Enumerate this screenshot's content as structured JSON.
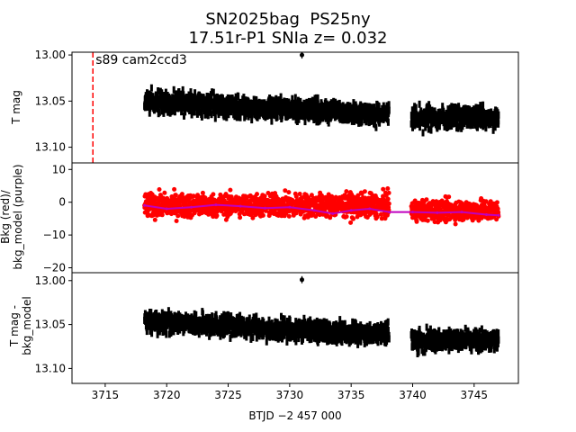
{
  "figure": {
    "title_line1": "SN2025bag  PS25ny",
    "title_line2": "17.51r-P1 SNIa z= 0.032",
    "xlabel": "BTJD −2 457 000"
  },
  "colors": {
    "flux": "#000000",
    "bkg": "#ff0000",
    "bkg_model": "#bf00bf",
    "marker_line": "#ff0000"
  },
  "chart_data": [
    {
      "type": "scatter",
      "panel": "top",
      "ylabel": "T mag",
      "annotation": "s89 cam2ccd3",
      "marker_line_x": 3714.0,
      "xlim": [
        3712.3,
        3748.6
      ],
      "ylim": [
        13.117,
        12.997
      ],
      "y_inverted": true,
      "yticks": [
        13.0,
        13.05,
        13.1
      ],
      "ytick_labels": [
        "13.00",
        "13.05",
        "13.10"
      ],
      "segments": [
        {
          "x_start": 3718.2,
          "x_end": 3738.1,
          "y_start": 13.05,
          "y_end": 13.065,
          "spread": 0.016
        },
        {
          "x_start": 3739.9,
          "x_end": 3747.0,
          "y_start": 13.068,
          "y_end": 13.068,
          "spread": 0.016
        }
      ],
      "outliers": [
        {
          "x": 3731.0,
          "y": 13.0
        }
      ]
    },
    {
      "type": "scatter",
      "panel": "middle",
      "ylabel": "Bkg (red)/\nbkg_model (purple)",
      "xlim": [
        3712.3,
        3748.6
      ],
      "ylim": [
        -21.5,
        12.0
      ],
      "yticks": [
        -20,
        -10,
        0,
        10
      ],
      "ytick_labels": [
        "−20",
        "−10",
        "0",
        "10"
      ],
      "series": [
        {
          "name": "Bkg",
          "color": "red",
          "segments": [
            {
              "x_start": 3718.2,
              "x_end": 3738.1,
              "center": -1.0,
              "spread": 5.0
            },
            {
              "x_start": 3739.9,
              "x_end": 3747.0,
              "center": -2.5,
              "spread": 4.5
            }
          ]
        },
        {
          "name": "bkg_model",
          "color": "purple",
          "x": [
            3718.2,
            3720,
            3722,
            3724,
            3726,
            3728,
            3730,
            3732,
            3733.5,
            3735,
            3736.5,
            3738.1,
            3740,
            3742,
            3744,
            3746,
            3747.0
          ],
          "y": [
            -1.0,
            -2.0,
            -1.5,
            -0.8,
            -1.2,
            -1.8,
            -1.5,
            -2.5,
            -3.5,
            -2.5,
            -2.0,
            -3.0,
            -3.0,
            -3.2,
            -3.0,
            -3.8,
            -4.0
          ]
        }
      ]
    },
    {
      "type": "scatter",
      "panel": "bottom",
      "ylabel": "T mag -\nbkg_model",
      "xlim": [
        3712.3,
        3748.6
      ],
      "ylim": [
        13.117,
        12.991
      ],
      "y_inverted": true,
      "yticks": [
        13.0,
        13.05,
        13.1
      ],
      "ytick_labels": [
        "13.00",
        "13.05",
        "13.10"
      ],
      "xticks": [
        3715,
        3720,
        3725,
        3730,
        3735,
        3740,
        3745
      ],
      "xtick_labels": [
        "3715",
        "3720",
        "3725",
        "3730",
        "3735",
        "3740",
        "3745"
      ],
      "segments": [
        {
          "x_start": 3718.2,
          "x_end": 3738.1,
          "y_start": 13.047,
          "y_end": 13.062,
          "spread": 0.016
        },
        {
          "x_start": 3739.9,
          "x_end": 3747.0,
          "y_start": 13.068,
          "y_end": 13.068,
          "spread": 0.016
        }
      ],
      "outliers": [
        {
          "x": 3731.0,
          "y": 12.999
        }
      ]
    }
  ]
}
